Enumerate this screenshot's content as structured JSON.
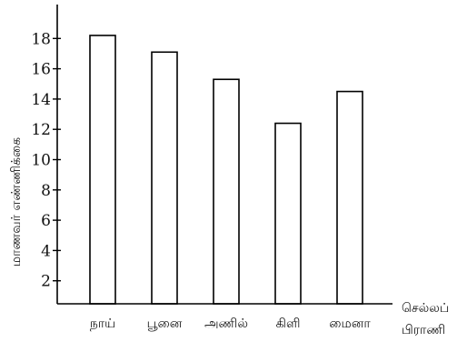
{
  "chart_data": {
    "type": "bar",
    "categories": [
      "நாய்",
      "பூனை",
      "அணில்",
      "கிளி",
      "மைனா"
    ],
    "values": [
      18.2,
      17.1,
      15.3,
      12.4,
      14.5
    ],
    "y_ticks": [
      2,
      4,
      6,
      8,
      10,
      12,
      14,
      16,
      18
    ],
    "ylim": [
      0,
      20
    ],
    "xlabel_lines": [
      "செல்லப்",
      "பிராணி"
    ],
    "ylabel": "மாணவர் எண்ணிக்கை",
    "grid": false,
    "bar_fill": "#ffffff",
    "bar_stroke": "#000000"
  }
}
